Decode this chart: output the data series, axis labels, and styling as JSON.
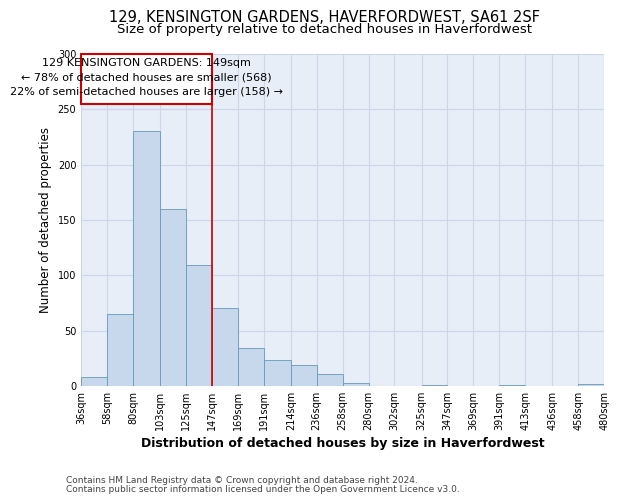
{
  "title": "129, KENSINGTON GARDENS, HAVERFORDWEST, SA61 2SF",
  "subtitle": "Size of property relative to detached houses in Haverfordwest",
  "xlabel": "Distribution of detached houses by size in Haverfordwest",
  "ylabel": "Number of detached properties",
  "footer_line1": "Contains HM Land Registry data © Crown copyright and database right 2024.",
  "footer_line2": "Contains public sector information licensed under the Open Government Licence v3.0.",
  "annotation_line1": "129 KENSINGTON GARDENS: 149sqm",
  "annotation_line2": "← 78% of detached houses are smaller (568)",
  "annotation_line3": "22% of semi-detached houses are larger (158) →",
  "bar_left_edges": [
    36,
    58,
    80,
    103,
    125,
    147,
    169,
    191,
    214,
    236,
    258,
    280,
    302,
    325,
    347,
    369,
    391,
    413,
    436,
    458
  ],
  "bar_widths": [
    22,
    22,
    23,
    22,
    22,
    22,
    22,
    23,
    22,
    22,
    22,
    22,
    23,
    22,
    22,
    22,
    22,
    23,
    22,
    22
  ],
  "bar_heights": [
    8,
    65,
    230,
    160,
    109,
    70,
    34,
    23,
    19,
    11,
    3,
    0,
    0,
    1,
    0,
    0,
    1,
    0,
    0,
    2
  ],
  "tick_labels": [
    "36sqm",
    "58sqm",
    "80sqm",
    "103sqm",
    "125sqm",
    "147sqm",
    "169sqm",
    "191sqm",
    "214sqm",
    "236sqm",
    "258sqm",
    "280sqm",
    "302sqm",
    "325sqm",
    "347sqm",
    "369sqm",
    "391sqm",
    "413sqm",
    "436sqm",
    "458sqm",
    "480sqm"
  ],
  "bar_color": "#c8d8ec",
  "bar_edge_color": "#6699bb",
  "grid_color": "#ccd6e8",
  "background_color": "#e8eef8",
  "reference_line_x": 147,
  "reference_line_color": "#cc0000",
  "annotation_box_color": "#cc0000",
  "ylim": [
    0,
    300
  ],
  "yticks": [
    0,
    50,
    100,
    150,
    200,
    250,
    300
  ],
  "title_fontsize": 10.5,
  "subtitle_fontsize": 9.5,
  "xlabel_fontsize": 9,
  "ylabel_fontsize": 8.5,
  "tick_fontsize": 7,
  "annotation_fontsize": 8,
  "footer_fontsize": 6.5
}
